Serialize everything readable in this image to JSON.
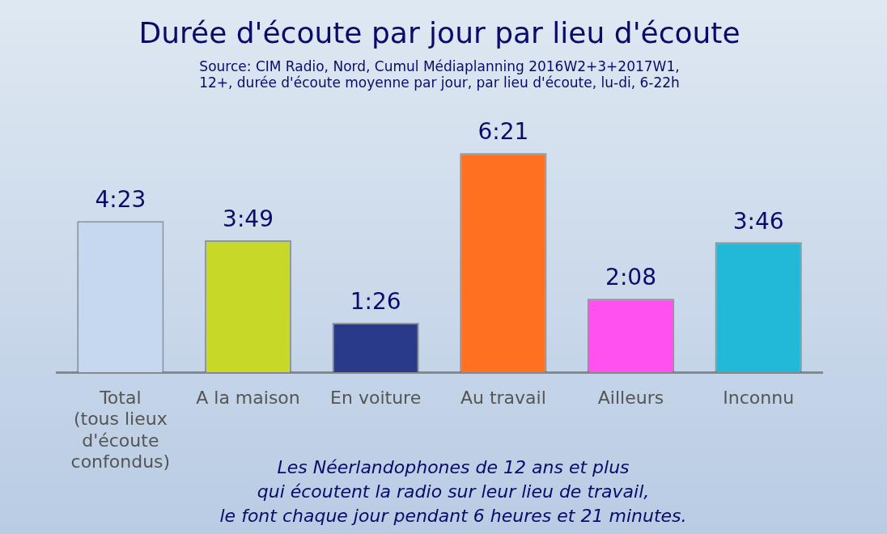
{
  "chart_data": {
    "type": "bar",
    "title": "Durée d'écoute par jour par lieu d'écoute",
    "subtitle": "Source: CIM Radio, Nord, Cumul Médiaplanning 2016W2+3+2017W1,\n12+, durée d'écoute moyenne par jour, par lieu d'écoute, lu-di, 6-22h",
    "categories": [
      "Total (tous lieux d'écoute confondus)",
      "A la maison",
      "En voiture",
      "Au travail",
      "Ailleurs",
      "Inconnu"
    ],
    "values": [
      4.38,
      3.82,
      1.43,
      6.35,
      2.13,
      3.77
    ],
    "value_labels": [
      "4:23",
      "3:49",
      "1:26",
      "6:21",
      "2:08",
      "3:46"
    ],
    "colors": [
      "#c5d8ef",
      "#c8d826",
      "#2a3a8a",
      "#ff7020",
      "#ff50f0",
      "#22b8d8"
    ],
    "grid": false,
    "legend": false,
    "annotations": [
      "Les Néerlandophones de 12 ans et plus\nqui écoutent la radio sur leur lieu de travail,\nle font chaque jour pendant 6 heures et 21 minutes."
    ]
  }
}
